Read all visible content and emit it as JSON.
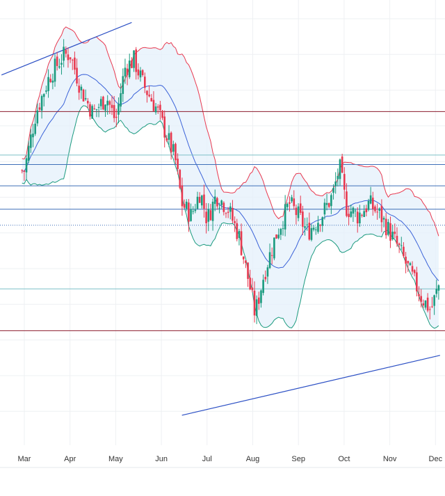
{
  "chart_data": {
    "type": "candlestick",
    "title": "",
    "xlabel": "",
    "ylabel": "",
    "x_ticks": [
      "Mar",
      "Apr",
      "May",
      "Jun",
      "Jul",
      "Aug",
      "Sep",
      "Oct",
      "Nov",
      "Dec"
    ],
    "x_tick_months": [
      0,
      1,
      2,
      3,
      4,
      5,
      6,
      7,
      8,
      9
    ],
    "x_range_months": [
      -0.5,
      9.1
    ],
    "y_range": [
      0,
      100
    ],
    "grid": true,
    "legend": "none",
    "indicators": [
      "Bollinger Bands",
      "Moving Average",
      "Horizontal Lines",
      "Trend Lines"
    ],
    "colors": {
      "up": "#1a9a7e",
      "down": "#e8384f",
      "middle_band": "#3a62d8",
      "upper_band": "#e8384f",
      "lower_band": "#1a9a7e",
      "band_fill": "#e4f0fb",
      "trend_line": "#2b4fc4",
      "level_dark_red": "#8b1a2b",
      "level_blue": "#3d6fb8",
      "level_teal": "#7cc0c8",
      "grid": "#eef0f3",
      "axis_text": "#333333"
    },
    "horizontal_levels": [
      {
        "y": 77.4,
        "color": "level_dark_red",
        "style": "solid"
      },
      {
        "y": 66.8,
        "color": "level_teal",
        "style": "solid"
      },
      {
        "y": 64.5,
        "color": "level_blue",
        "style": "solid"
      },
      {
        "y": 59.3,
        "color": "level_blue",
        "style": "solid"
      },
      {
        "y": 53.6,
        "color": "level_blue",
        "style": "solid"
      },
      {
        "y": 49.7,
        "color": "level_blue",
        "style": "dotted"
      },
      {
        "y": 34.2,
        "color": "level_teal",
        "style": "solid"
      },
      {
        "y": 24.0,
        "color": "level_dark_red",
        "style": "solid"
      }
    ],
    "trend_lines": [
      {
        "x1": -0.5,
        "y1": 86.3,
        "x2": 2.35,
        "y2": 99.1
      },
      {
        "x1": 3.45,
        "y1": 3.4,
        "x2": 9.1,
        "y2": 18.0
      }
    ],
    "key_prices": [
      {
        "x": 0.0,
        "y": 63.0
      },
      {
        "x": 0.25,
        "y": 77.0
      },
      {
        "x": 0.55,
        "y": 86.0
      },
      {
        "x": 0.85,
        "y": 91.0
      },
      {
        "x": 1.0,
        "y": 91.5
      },
      {
        "x": 1.25,
        "y": 82.5
      },
      {
        "x": 1.5,
        "y": 77.0
      },
      {
        "x": 1.8,
        "y": 81.0
      },
      {
        "x": 2.0,
        "y": 75.0
      },
      {
        "x": 2.2,
        "y": 88.0
      },
      {
        "x": 2.4,
        "y": 90.0
      },
      {
        "x": 2.6,
        "y": 84.0
      },
      {
        "x": 2.9,
        "y": 78.0
      },
      {
        "x": 3.1,
        "y": 72.0
      },
      {
        "x": 3.3,
        "y": 66.0
      },
      {
        "x": 3.45,
        "y": 55.0
      },
      {
        "x": 3.65,
        "y": 52.0
      },
      {
        "x": 3.85,
        "y": 58.0
      },
      {
        "x": 4.0,
        "y": 51.0
      },
      {
        "x": 4.2,
        "y": 57.0
      },
      {
        "x": 4.45,
        "y": 54.0
      },
      {
        "x": 4.7,
        "y": 47.0
      },
      {
        "x": 4.95,
        "y": 34.0
      },
      {
        "x": 5.05,
        "y": 28.0
      },
      {
        "x": 5.25,
        "y": 38.0
      },
      {
        "x": 5.5,
        "y": 47.0
      },
      {
        "x": 5.8,
        "y": 55.0
      },
      {
        "x": 6.0,
        "y": 52.0
      },
      {
        "x": 6.2,
        "y": 48.0
      },
      {
        "x": 6.5,
        "y": 52.0
      },
      {
        "x": 6.75,
        "y": 57.0
      },
      {
        "x": 6.9,
        "y": 64.0
      },
      {
        "x": 7.05,
        "y": 54.0
      },
      {
        "x": 7.3,
        "y": 52.0
      },
      {
        "x": 7.55,
        "y": 55.0
      },
      {
        "x": 7.8,
        "y": 52.0
      },
      {
        "x": 8.0,
        "y": 48.0
      },
      {
        "x": 8.2,
        "y": 44.0
      },
      {
        "x": 8.45,
        "y": 38.0
      },
      {
        "x": 8.7,
        "y": 32.0
      },
      {
        "x": 8.9,
        "y": 29.0
      },
      {
        "x": 9.1,
        "y": 36.0
      }
    ]
  }
}
